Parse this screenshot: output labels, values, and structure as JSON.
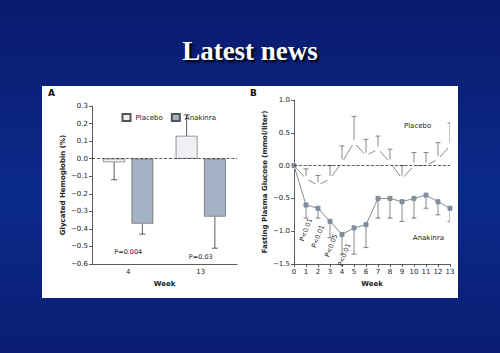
{
  "title": "Latest news",
  "chart_data": [
    {
      "type": "bar",
      "panel": "A",
      "x_label": "Week",
      "y_label": "Glycated Hemoglobin (%)",
      "categories": [
        "4",
        "13"
      ],
      "series": [
        {
          "name": "Placebo",
          "color": "#eef0f4",
          "values": [
            -0.02,
            0.13
          ],
          "error_low": [
            0.1,
            0
          ],
          "error_high": [
            0,
            0.12
          ]
        },
        {
          "name": "Anakinra",
          "color": "#a3b2c4",
          "values": [
            -0.37,
            -0.33
          ],
          "error_low": [
            0.06,
            0.18
          ],
          "error_high": [
            0,
            0
          ]
        }
      ],
      "ylim": [
        -0.6,
        0.3
      ],
      "yticks": [
        {
          "value": -0.6,
          "label": "−0.6"
        },
        {
          "value": -0.5,
          "label": "−0.5"
        },
        {
          "value": -0.4,
          "label": "−0.4"
        },
        {
          "value": -0.3,
          "label": "−0.3"
        },
        {
          "value": -0.2,
          "label": "−0.2"
        },
        {
          "value": -0.1,
          "label": "−0.1"
        },
        {
          "value": 0,
          "label": "0.0"
        },
        0.1,
        0.2,
        0.3
      ],
      "reference_y": 0,
      "legend": "top",
      "annotations": [
        {
          "text": "P=0.004",
          "x": "4",
          "y": -0.53
        },
        {
          "text": "P=0.03",
          "x": "13",
          "y": -0.56
        }
      ]
    },
    {
      "type": "line",
      "panel": "B",
      "x_label": "Week",
      "y_label": "Fasting Plasma Glucose (mmol/liter)",
      "x": [
        0,
        1,
        2,
        3,
        4,
        5,
        6,
        7,
        8,
        9,
        10,
        11,
        12,
        13
      ],
      "xlim": [
        0,
        13
      ],
      "xticks": [
        0,
        1,
        2,
        3,
        4,
        5,
        6,
        7,
        8,
        9,
        10,
        11,
        12,
        13
      ],
      "ylim": [
        -1.5,
        1.0
      ],
      "yticks": [
        {
          "value": -1.5,
          "label": "−1.5"
        },
        {
          "value": -1.0,
          "label": "−1.0"
        },
        {
          "value": -0.5,
          "label": "−0.5"
        },
        {
          "value": 0,
          "label": "0.0"
        },
        0.5,
        {
          "value": 1.0,
          "label": "1.0"
        }
      ],
      "reference_y": 0,
      "series": [
        {
          "name": "Placebo",
          "color": "#8a8a8a",
          "marker": "circle",
          "values": [
            0,
            -0.2,
            -0.3,
            -0.2,
            0.05,
            0.35,
            0.15,
            0.25,
            0.05,
            -0.2,
            0,
            0,
            0.1,
            0.3
          ],
          "error_low": [
            0,
            0,
            0,
            0,
            0,
            0,
            0,
            0,
            0,
            0,
            0,
            0,
            0,
            0
          ],
          "error_high": [
            0,
            0.15,
            0.15,
            0.2,
            0.25,
            0.4,
            0.25,
            0.2,
            0.2,
            0.2,
            0.2,
            0.2,
            0.25,
            0.35
          ],
          "label_at": {
            "x": 10.3,
            "y": 0.6
          }
        },
        {
          "name": "Anakinra",
          "color": "#7f8e9e",
          "marker": "square",
          "values": [
            0,
            -0.6,
            -0.65,
            -0.85,
            -1.05,
            -0.95,
            -0.9,
            -0.5,
            -0.5,
            -0.55,
            -0.5,
            -0.45,
            -0.55,
            -0.65
          ],
          "error_low": [
            0,
            0.2,
            0.15,
            0.25,
            0.3,
            0.4,
            0.35,
            0.3,
            0.3,
            0.3,
            0.3,
            0.2,
            0.2,
            0.2
          ],
          "error_high": [
            0,
            0,
            0,
            0,
            0,
            0,
            0,
            0,
            0,
            0,
            0,
            0,
            0,
            0
          ],
          "label_at": {
            "x": 11.2,
            "y": -1.1
          }
        }
      ],
      "annotations": [
        {
          "text": "P<0.01",
          "x": 1.0,
          "y": -0.98
        },
        {
          "text": "P<0.01",
          "x": 2.0,
          "y": -1.08
        },
        {
          "text": "P<0.05",
          "x": 3.1,
          "y": -1.22
        },
        {
          "text": "P<0.01",
          "x": 4.2,
          "y": -1.36
        }
      ]
    }
  ]
}
